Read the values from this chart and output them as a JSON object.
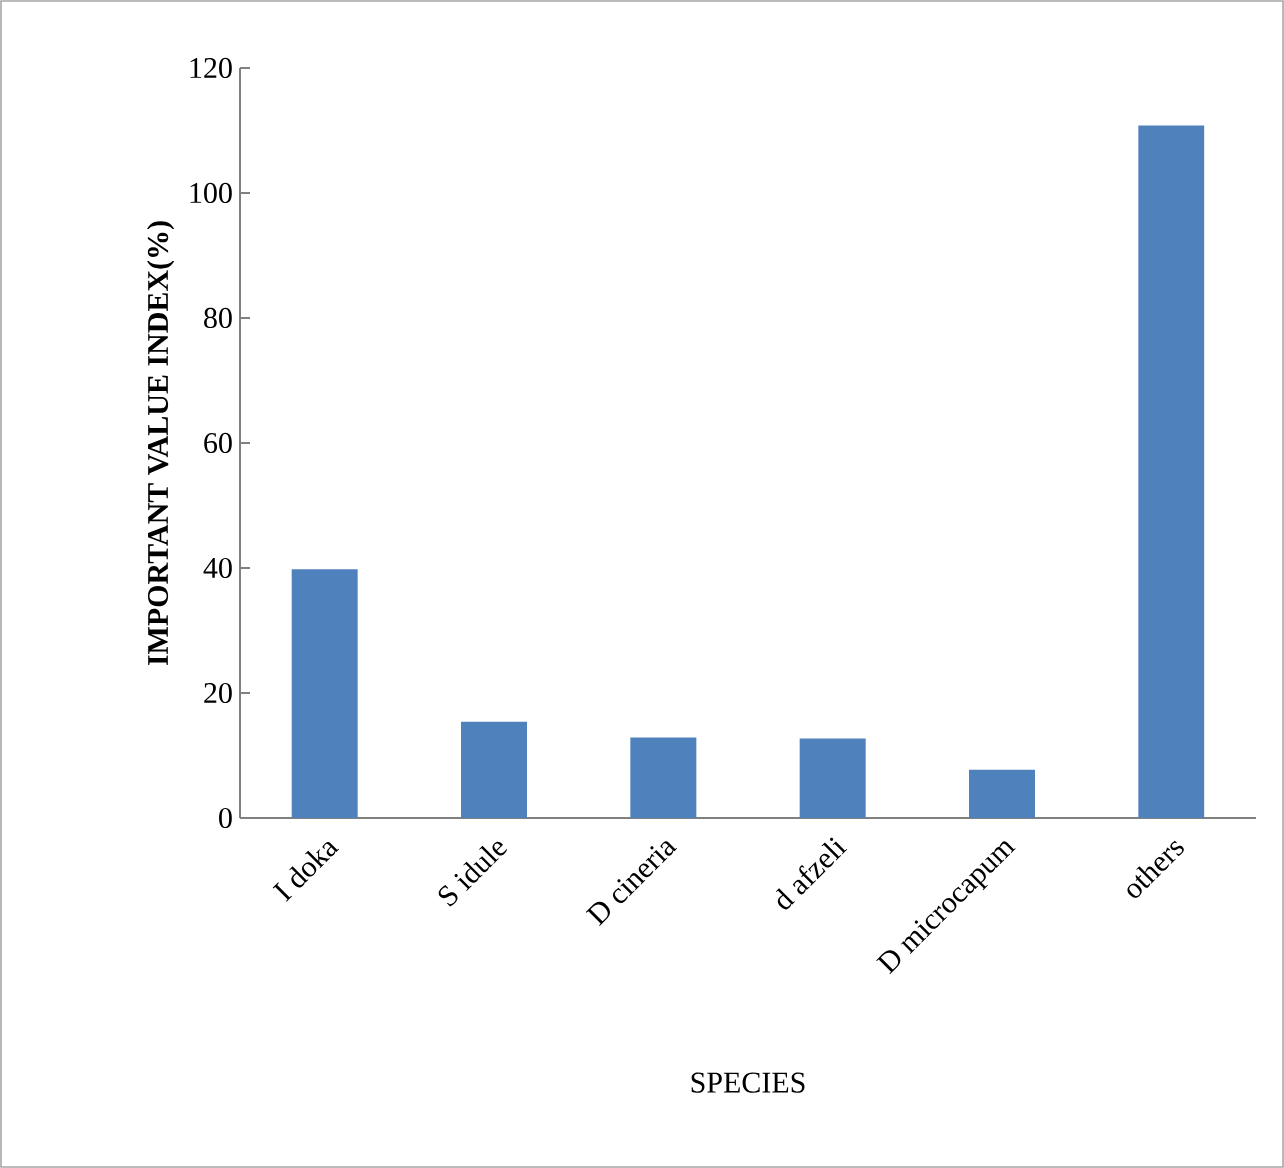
{
  "chart_data": {
    "type": "bar",
    "xlabel": "SPECIES",
    "ylabel": "IMPORTANT VALUE INDEX(%)",
    "categories": [
      "I doka",
      "S idule",
      "D cineria",
      "d  afzeli",
      "D microcapum",
      "others"
    ],
    "values": [
      39.8,
      15.4,
      12.9,
      12.7,
      7.7,
      110.8
    ],
    "color": "#4f81bd",
    "ylim": [
      0,
      120
    ],
    "yticks": [
      0,
      20,
      40,
      60,
      80,
      100,
      120
    ],
    "grid": false
  }
}
